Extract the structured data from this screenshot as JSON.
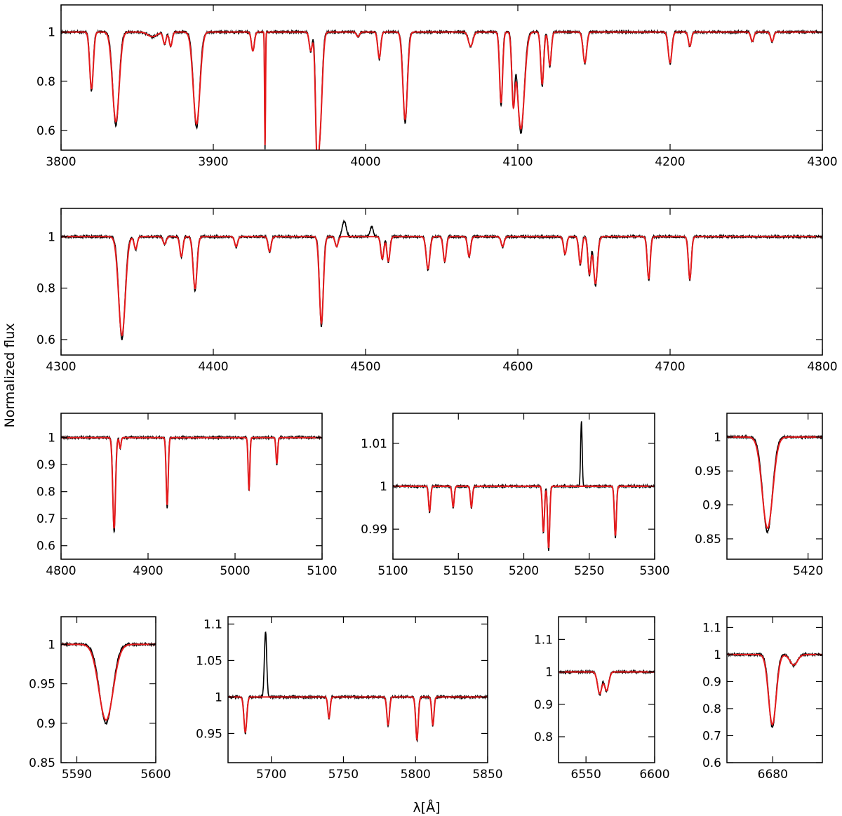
{
  "figure": {
    "ylabel": "Normalized flux",
    "xlabel": "λ[Å]",
    "series_colors": {
      "observed": "#000000",
      "model": "#e41a1c"
    }
  },
  "chart_data": [
    {
      "type": "line",
      "id": "p1",
      "xlim": [
        3800,
        4300
      ],
      "ylim": [
        0.52,
        1.11
      ],
      "xticks": [
        3800,
        3900,
        4000,
        4100,
        4200,
        4300
      ],
      "yticks": [
        0.6,
        0.8,
        1
      ],
      "ytick_labels": [
        "0.6",
        "0.8",
        "1"
      ],
      "lines": [
        {
          "x": 3820,
          "d": 0.24,
          "w": 1.2
        },
        {
          "x": 3836,
          "d": 0.38,
          "w": 2.2
        },
        {
          "x": 3860,
          "d": 0.02,
          "w": 3
        },
        {
          "x": 3868,
          "d": 0.05,
          "w": 1
        },
        {
          "x": 3872,
          "d": 0.06,
          "w": 1
        },
        {
          "x": 3889,
          "d": 0.39,
          "w": 2.2
        },
        {
          "x": 3926,
          "d": 0.08,
          "w": 1
        },
        {
          "x": 3934,
          "d": 0.48,
          "w": 0.3
        },
        {
          "x": 3964,
          "d": 0.08,
          "w": 1
        },
        {
          "x": 3968,
          "d": 0.38,
          "w": 1
        },
        {
          "x": 3970,
          "d": 0.4,
          "w": 1.5
        },
        {
          "x": 3995,
          "d": 0.02,
          "w": 1
        },
        {
          "x": 4009,
          "d": 0.11,
          "w": 1
        },
        {
          "x": 4026,
          "d": 0.37,
          "w": 1.5
        },
        {
          "x": 4069,
          "d": 0.06,
          "w": 1.5
        },
        {
          "x": 4089,
          "d": 0.3,
          "w": 1
        },
        {
          "x": 4097,
          "d": 0.28,
          "w": 1
        },
        {
          "x": 4102,
          "d": 0.41,
          "w": 2.3
        },
        {
          "x": 4116,
          "d": 0.22,
          "w": 1
        },
        {
          "x": 4121,
          "d": 0.14,
          "w": 1
        },
        {
          "x": 4144,
          "d": 0.13,
          "w": 1.2
        },
        {
          "x": 4200,
          "d": 0.13,
          "w": 1.2
        },
        {
          "x": 4213,
          "d": 0.06,
          "w": 1
        },
        {
          "x": 4254,
          "d": 0.04,
          "w": 1
        },
        {
          "x": 4267,
          "d": 0.04,
          "w": 1
        }
      ],
      "emission": []
    },
    {
      "type": "line",
      "id": "p2",
      "xlim": [
        4300,
        4800
      ],
      "ylim": [
        0.54,
        1.11
      ],
      "xticks": [
        4300,
        4400,
        4500,
        4600,
        4700,
        4800
      ],
      "yticks": [
        0.6,
        0.8,
        1
      ],
      "ytick_labels": [
        "0.6",
        "0.8",
        "1"
      ],
      "lines": [
        {
          "x": 4340,
          "d": 0.4,
          "w": 2.2
        },
        {
          "x": 4349,
          "d": 0.05,
          "w": 1
        },
        {
          "x": 4368,
          "d": 0.03,
          "w": 1
        },
        {
          "x": 4379,
          "d": 0.08,
          "w": 1
        },
        {
          "x": 4388,
          "d": 0.21,
          "w": 1.3
        },
        {
          "x": 4415,
          "d": 0.04,
          "w": 1
        },
        {
          "x": 4437,
          "d": 0.06,
          "w": 1
        },
        {
          "x": 4471,
          "d": 0.35,
          "w": 1.3
        },
        {
          "x": 4481,
          "d": 0.04,
          "w": 1
        },
        {
          "x": 4511,
          "d": 0.09,
          "w": 1
        },
        {
          "x": 4515,
          "d": 0.1,
          "w": 1
        },
        {
          "x": 4541,
          "d": 0.13,
          "w": 1.2
        },
        {
          "x": 4552,
          "d": 0.1,
          "w": 1
        },
        {
          "x": 4568,
          "d": 0.08,
          "w": 1
        },
        {
          "x": 4590,
          "d": 0.04,
          "w": 1
        },
        {
          "x": 4631,
          "d": 0.07,
          "w": 1
        },
        {
          "x": 4641,
          "d": 0.11,
          "w": 1
        },
        {
          "x": 4647,
          "d": 0.15,
          "w": 1
        },
        {
          "x": 4651,
          "d": 0.19,
          "w": 1.3
        },
        {
          "x": 4686,
          "d": 0.17,
          "w": 1
        },
        {
          "x": 4713,
          "d": 0.17,
          "w": 1
        }
      ],
      "emission": [
        {
          "x": 4486,
          "h": 0.06,
          "w": 1.3
        },
        {
          "x": 4504,
          "h": 0.04,
          "w": 1
        }
      ]
    },
    {
      "type": "line",
      "id": "p3",
      "xlim": [
        4800,
        5100
      ],
      "ylim": [
        0.55,
        1.09
      ],
      "xticks": [
        4800,
        4900,
        5000,
        5100
      ],
      "yticks": [
        0.6,
        0.7,
        0.8,
        0.9,
        1
      ],
      "ytick_labels": [
        "0.6",
        "0.7",
        "0.8",
        "0.9",
        "1"
      ],
      "lines": [
        {
          "x": 4861,
          "d": 0.35,
          "w": 1.6
        },
        {
          "x": 4868,
          "d": 0.04,
          "w": 1
        },
        {
          "x": 4922,
          "d": 0.26,
          "w": 1.2
        },
        {
          "x": 5016,
          "d": 0.2,
          "w": 1
        },
        {
          "x": 5048,
          "d": 0.1,
          "w": 1
        }
      ],
      "emission": []
    },
    {
      "type": "line",
      "id": "p4",
      "xlim": [
        5100,
        5300
      ],
      "ylim": [
        0.983,
        1.017
      ],
      "xticks": [
        5100,
        5150,
        5200,
        5250,
        5300
      ],
      "yticks": [
        0.99,
        1,
        1.01
      ],
      "ytick_labels": [
        "0.99",
        "1",
        "1.01"
      ],
      "lines": [
        {
          "x": 5128,
          "d": 0.006,
          "w": 0.8
        },
        {
          "x": 5146,
          "d": 0.005,
          "w": 0.8
        },
        {
          "x": 5160,
          "d": 0.005,
          "w": 0.8
        },
        {
          "x": 5215,
          "d": 0.011,
          "w": 0.8
        },
        {
          "x": 5219,
          "d": 0.015,
          "w": 0.8
        },
        {
          "x": 5270,
          "d": 0.012,
          "w": 0.8
        }
      ],
      "emission": [
        {
          "x": 5244,
          "h": 0.015,
          "w": 0.6
        }
      ]
    },
    {
      "type": "line",
      "id": "p5",
      "xlim": [
        5403,
        5423
      ],
      "ylim": [
        0.82,
        1.035
      ],
      "xticks": [
        5420
      ],
      "yticks": [
        0.85,
        0.9,
        0.95,
        1
      ],
      "ytick_labels": [
        "0.85",
        "0.9",
        "0.95",
        "1"
      ],
      "lines": [
        {
          "x": 5411.5,
          "d": 0.14,
          "w": 1.1
        }
      ],
      "emission": []
    },
    {
      "type": "line",
      "id": "p6",
      "xlim": [
        5588,
        5600
      ],
      "ylim": [
        0.85,
        1.035
      ],
      "xticks": [
        5590,
        5600
      ],
      "yticks": [
        0.85,
        0.9,
        0.95,
        1
      ],
      "ytick_labels": [
        "0.85",
        "0.9",
        "0.95",
        "1"
      ],
      "lines": [
        {
          "x": 5593.7,
          "d": 0.1,
          "w": 0.9
        }
      ],
      "emission": []
    },
    {
      "type": "line",
      "id": "p7",
      "xlim": [
        5670,
        5850
      ],
      "ylim": [
        0.91,
        1.11
      ],
      "xticks": [
        5700,
        5750,
        5800,
        5850
      ],
      "yticks": [
        0.95,
        1,
        1.05,
        1.1
      ],
      "ytick_labels": [
        "0.95",
        "1",
        "1.05",
        "1.1"
      ],
      "lines": [
        {
          "x": 5682,
          "d": 0.05,
          "w": 1
        },
        {
          "x": 5740,
          "d": 0.03,
          "w": 0.8
        },
        {
          "x": 5781,
          "d": 0.04,
          "w": 0.9
        },
        {
          "x": 5801,
          "d": 0.06,
          "w": 0.9
        },
        {
          "x": 5812,
          "d": 0.04,
          "w": 0.8
        }
      ],
      "emission": [
        {
          "x": 5696,
          "h": 0.09,
          "w": 0.8
        }
      ]
    },
    {
      "type": "line",
      "id": "p8",
      "xlim": [
        6530,
        6600
      ],
      "ylim": [
        0.72,
        1.17
      ],
      "xticks": [
        6550,
        6600
      ],
      "yticks": [
        0.8,
        0.9,
        1,
        1.1
      ],
      "ytick_labels": [
        "0.8",
        "0.9",
        "1",
        "1.1"
      ],
      "lines": [
        {
          "x": 6560,
          "d": 0.07,
          "w": 1.6
        },
        {
          "x": 6565,
          "d": 0.06,
          "w": 1.6
        }
      ],
      "emission": []
    },
    {
      "type": "line",
      "id": "p9",
      "xlim": [
        6668,
        6693
      ],
      "ylim": [
        0.6,
        1.14
      ],
      "xticks": [
        6680
      ],
      "yticks": [
        0.6,
        0.7,
        0.8,
        0.9,
        1,
        1.1
      ],
      "ytick_labels": [
        "0.6",
        "0.7",
        "0.8",
        "0.9",
        "1",
        "1.1"
      ],
      "lines": [
        {
          "x": 6679.9,
          "d": 0.27,
          "w": 1
        },
        {
          "x": 6685.5,
          "d": 0.04,
          "w": 1
        }
      ],
      "emission": []
    }
  ]
}
